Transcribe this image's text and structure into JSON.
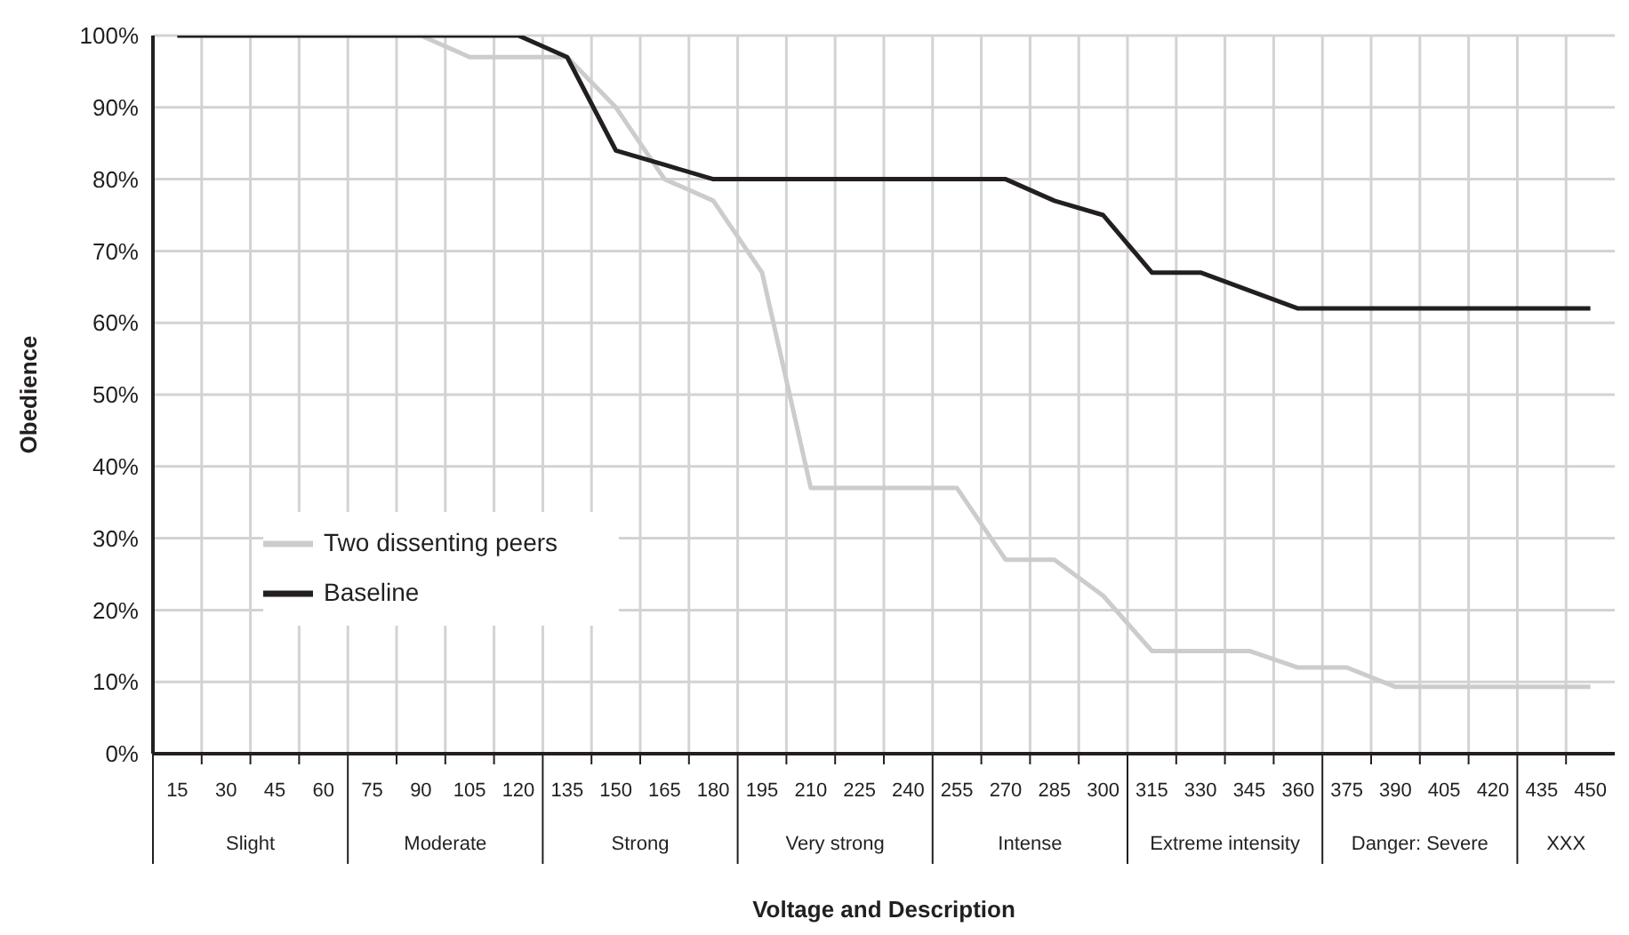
{
  "chart_data": {
    "type": "line",
    "xlabel": "Voltage and Description",
    "ylabel": "Obedience",
    "categories": [
      "15",
      "30",
      "45",
      "60",
      "75",
      "90",
      "105",
      "120",
      "135",
      "150",
      "165",
      "180",
      "195",
      "210",
      "225",
      "240",
      "255",
      "270",
      "285",
      "300",
      "315",
      "330",
      "345",
      "360",
      "375",
      "390",
      "405",
      "420",
      "435",
      "450"
    ],
    "annotations": [
      "Slight",
      "Moderate",
      "Strong",
      "Very strong",
      "Intense",
      "Extreme intensity",
      "Danger: Severe",
      "XXX"
    ],
    "series": [
      {
        "name": "Two dissenting peers",
        "color": "#cccccc",
        "values": [
          100,
          100,
          100,
          100,
          100,
          100,
          97,
          97,
          97,
          90,
          80,
          77,
          67,
          37,
          37,
          37,
          37,
          27,
          27,
          22,
          14.3,
          14.3,
          14.3,
          12,
          12,
          9.3,
          9.3,
          9.3,
          9.3,
          9.3
        ]
      },
      {
        "name": "Baseline",
        "color": "#231f20",
        "values": [
          100,
          100,
          100,
          100,
          100,
          100,
          100,
          100,
          97,
          84,
          82,
          80,
          80,
          80,
          80,
          80,
          80,
          80,
          77,
          75,
          67,
          67,
          64.5,
          62,
          62,
          62,
          62,
          62,
          62,
          62
        ]
      }
    ],
    "ylim": [
      0,
      100
    ],
    "yticks": [
      {
        "value": 0,
        "label": "0%"
      },
      {
        "value": 10,
        "label": "10%"
      },
      {
        "value": 20,
        "label": "20%"
      },
      {
        "value": 30,
        "label": "30%"
      },
      {
        "value": 40,
        "label": "40%"
      },
      {
        "value": 50,
        "label": "50%"
      },
      {
        "value": 60,
        "label": "60%"
      },
      {
        "value": 70,
        "label": "70%"
      },
      {
        "value": 80,
        "label": "80%"
      },
      {
        "value": 90,
        "label": "90%"
      },
      {
        "value": 100,
        "label": "100%"
      }
    ],
    "grid": true,
    "legend": "bottom left",
    "marker": "none",
    "line_style": "solid"
  }
}
